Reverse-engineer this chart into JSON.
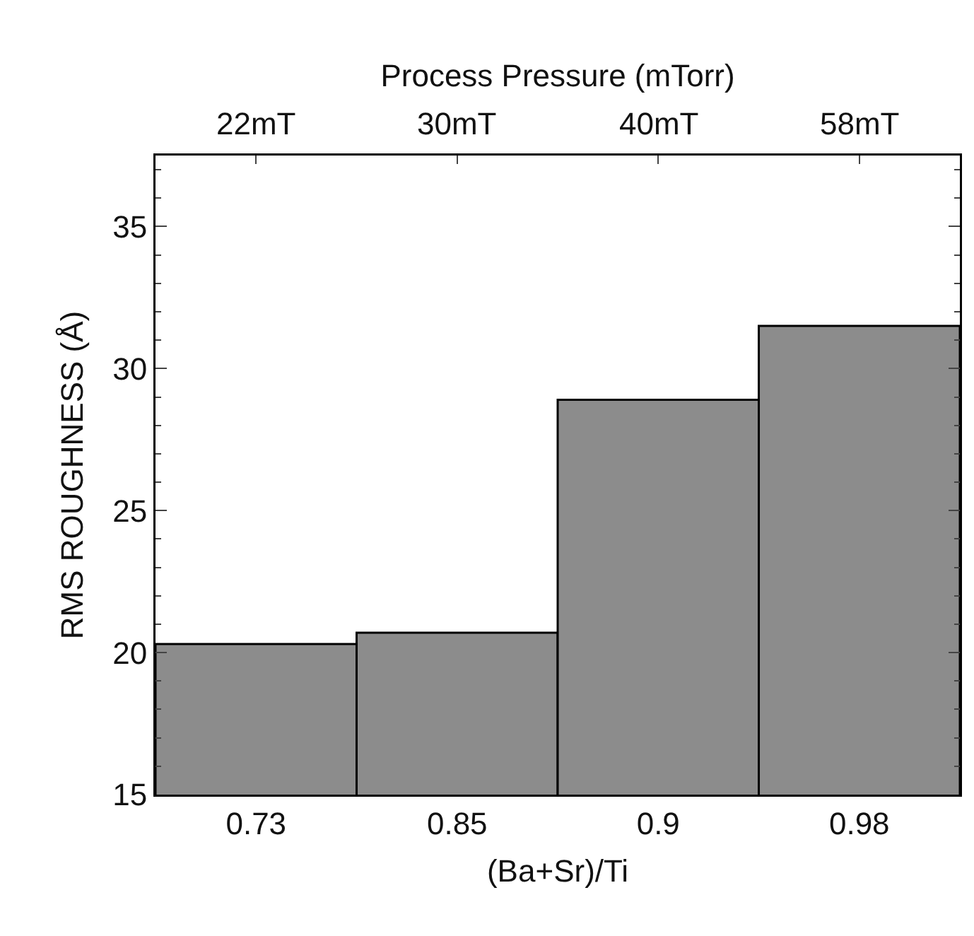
{
  "chart_data": {
    "type": "bar",
    "categories": [
      "0.73",
      "0.85",
      "0.9",
      "0.98"
    ],
    "values": [
      20.3,
      20.7,
      28.9,
      31.5
    ],
    "color": "#8c8c8c",
    "annotations": [
      {
        "text": "22mT",
        "x": "0.73"
      },
      {
        "text": "30mT",
        "x": "0.85"
      },
      {
        "text": "40mT",
        "x": "0.9"
      },
      {
        "text": "58mT",
        "x": "0.98"
      }
    ],
    "x2label": "Process Pressure (mTorr)",
    "xlabel": "(Ba+Sr)/Ti",
    "ylabel": "RMS ROUGHNESS (Å)",
    "ylim": [
      15,
      37.5
    ],
    "yticks": [
      15,
      20,
      25,
      30,
      35
    ]
  }
}
